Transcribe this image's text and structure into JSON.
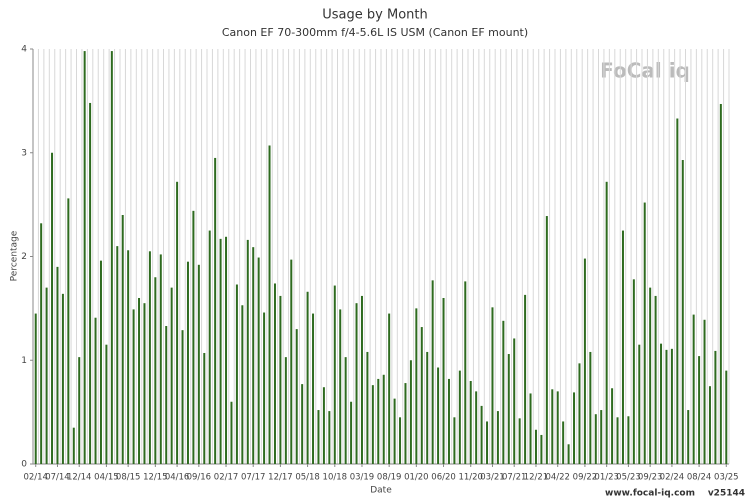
{
  "chart_data": {
    "type": "bar",
    "title": "Usage by Month",
    "subtitle": "Canon EF 70-300mm f/4-5.6L IS USM (Canon EF mount)",
    "x_label": "Date",
    "y_label": "Percentage",
    "watermark": "FoCal iq",
    "footer": [
      "www.focal-iq.com",
      "v25144"
    ],
    "color": "#2e6b1f",
    "ylim": [
      0,
      4
    ],
    "yticks": [
      0,
      1,
      2,
      3,
      4
    ],
    "categories": [
      "02/14",
      null,
      null,
      null,
      "07/14",
      null,
      null,
      null,
      "12/14",
      null,
      null,
      null,
      null,
      "04/15",
      null,
      null,
      null,
      "08/15",
      null,
      null,
      null,
      null,
      "12/15",
      null,
      null,
      null,
      "04/16",
      null,
      null,
      null,
      "09/16",
      null,
      null,
      null,
      null,
      "02/17",
      null,
      null,
      null,
      null,
      "07/17",
      null,
      null,
      null,
      null,
      "12/17",
      null,
      null,
      null,
      null,
      "05/18",
      null,
      null,
      null,
      null,
      "10/18",
      null,
      null,
      null,
      null,
      "03/19",
      null,
      null,
      null,
      null,
      "08/19",
      null,
      null,
      null,
      null,
      "01/20",
      null,
      null,
      null,
      null,
      "06/20",
      null,
      null,
      null,
      null,
      "11/20",
      null,
      null,
      null,
      "03/21",
      null,
      null,
      null,
      "07/21",
      null,
      null,
      null,
      "12/21",
      null,
      null,
      null,
      "04/22",
      null,
      null,
      null,
      null,
      "09/22",
      null,
      null,
      null,
      "01/23",
      null,
      null,
      null,
      "05/23",
      null,
      null,
      null,
      "09/23",
      null,
      null,
      null,
      "02/24",
      null,
      null,
      null,
      null,
      "08/24",
      null,
      null,
      null,
      null,
      "03/25"
    ],
    "values": [
      1.45,
      2.32,
      1.7,
      3.0,
      1.9,
      1.64,
      2.56,
      0.35,
      1.03,
      3.98,
      3.48,
      1.41,
      1.96,
      1.15,
      3.98,
      2.1,
      2.4,
      2.06,
      1.49,
      1.6,
      1.55,
      2.05,
      1.8,
      2.02,
      1.33,
      1.7,
      2.72,
      1.29,
      1.95,
      2.44,
      1.92,
      1.07,
      2.25,
      2.95,
      2.17,
      2.19,
      0.6,
      1.73,
      1.53,
      2.16,
      2.09,
      1.99,
      1.46,
      3.07,
      1.74,
      1.62,
      1.03,
      1.97,
      1.3,
      0.77,
      1.66,
      1.45,
      0.52,
      0.74,
      0.51,
      1.72,
      1.49,
      1.03,
      0.6,
      1.55,
      1.62,
      1.08,
      0.76,
      0.82,
      0.86,
      1.45,
      0.63,
      0.45,
      0.78,
      1.0,
      1.5,
      1.32,
      1.08,
      1.77,
      0.93,
      1.6,
      0.82,
      0.45,
      0.9,
      1.76,
      0.8,
      0.7,
      0.56,
      0.41,
      1.51,
      0.51,
      1.38,
      1.06,
      1.21,
      0.44,
      1.63,
      0.68,
      0.33,
      0.28,
      2.39,
      0.72,
      0.7,
      0.41,
      0.19,
      0.69,
      0.97,
      1.98,
      1.08,
      0.48,
      0.52,
      2.72,
      0.73,
      0.45,
      2.25,
      0.46,
      1.78,
      1.15,
      2.52,
      1.7,
      1.62,
      1.16,
      1.1,
      1.11,
      3.33,
      2.93,
      0.52,
      1.44,
      1.04,
      1.39,
      0.75,
      1.09,
      3.47,
      0.9
    ]
  }
}
